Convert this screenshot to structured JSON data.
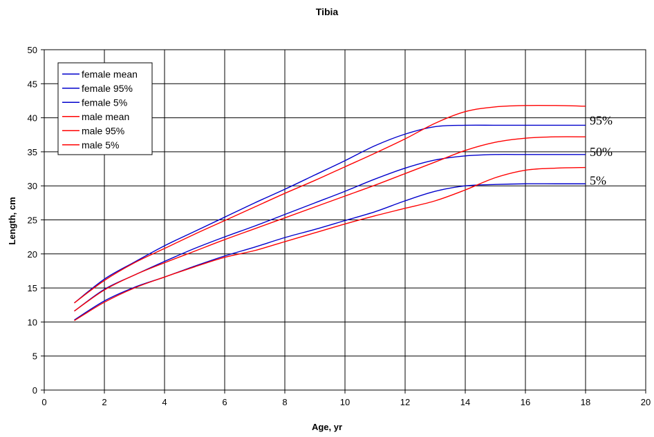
{
  "chart_data": {
    "type": "line",
    "title": "Tibia",
    "xlabel": "Age, yr",
    "ylabel": "Length, cm",
    "xlim": [
      0,
      20
    ],
    "ylim": [
      0,
      50
    ],
    "xticks": [
      "0",
      "2",
      "4",
      "6",
      "8",
      "10",
      "12",
      "14",
      "16",
      "18",
      "20"
    ],
    "yticks": [
      "0",
      "5",
      "10",
      "15",
      "20",
      "25",
      "30",
      "35",
      "40",
      "45",
      "50"
    ],
    "grid": true,
    "legend_position": "top-left",
    "colors": {
      "female": "#0000cc",
      "male": "#ff0000"
    },
    "annotations": [
      {
        "text": "95%",
        "x": 18,
        "y": 39.8
      },
      {
        "text": "50%",
        "x": 18,
        "y": 35.2
      },
      {
        "text": "5%",
        "x": 18,
        "y": 31
      }
    ],
    "series": [
      {
        "name": "female mean",
        "color": "#0000cc",
        "x": [
          1,
          2,
          3,
          4,
          5,
          6,
          7,
          8,
          9,
          10,
          11,
          12,
          13,
          14,
          15,
          16,
          17,
          18
        ],
        "y": [
          11.6,
          14.8,
          16.9,
          18.9,
          20.8,
          22.5,
          24.1,
          25.8,
          27.5,
          29.2,
          31.0,
          32.6,
          33.8,
          34.4,
          34.6,
          34.6,
          34.6,
          34.6
        ]
      },
      {
        "name": "female 95%",
        "color": "#0000cc",
        "x": [
          1,
          2,
          3,
          4,
          5,
          6,
          7,
          8,
          9,
          10,
          11,
          12,
          13,
          14,
          15,
          16,
          17,
          18
        ],
        "y": [
          12.8,
          16.3,
          18.8,
          21.2,
          23.3,
          25.4,
          27.5,
          29.5,
          31.6,
          33.7,
          35.9,
          37.6,
          38.7,
          38.9,
          38.9,
          38.9,
          38.9,
          38.9
        ]
      },
      {
        "name": "female 5%",
        "color": "#0000cc",
        "x": [
          1,
          2,
          3,
          4,
          5,
          6,
          7,
          8,
          9,
          10,
          11,
          12,
          13,
          14,
          15,
          16,
          17,
          18
        ],
        "y": [
          10.3,
          13.1,
          15.1,
          16.6,
          18.2,
          19.7,
          21.0,
          22.4,
          23.6,
          24.9,
          26.2,
          27.8,
          29.2,
          30.0,
          30.2,
          30.3,
          30.3,
          30.3
        ]
      },
      {
        "name": "male mean",
        "color": "#ff0000",
        "x": [
          1,
          2,
          3,
          4,
          5,
          6,
          7,
          8,
          9,
          10,
          11,
          12,
          13,
          14,
          15,
          16,
          17,
          18
        ],
        "y": [
          11.6,
          14.7,
          16.9,
          18.7,
          20.4,
          22.1,
          23.7,
          25.3,
          26.9,
          28.5,
          30.1,
          31.8,
          33.5,
          35.2,
          36.4,
          37.0,
          37.2,
          37.2
        ]
      },
      {
        "name": "male 95%",
        "color": "#ff0000",
        "x": [
          1,
          2,
          3,
          4,
          5,
          6,
          7,
          8,
          9,
          10,
          11,
          12,
          13,
          14,
          15,
          16,
          17,
          18
        ],
        "y": [
          12.8,
          16.1,
          18.7,
          20.8,
          22.9,
          24.9,
          26.9,
          28.9,
          30.8,
          32.8,
          34.8,
          36.9,
          39.2,
          40.9,
          41.6,
          41.8,
          41.8,
          41.7
        ]
      },
      {
        "name": "male 5%",
        "color": "#ff0000",
        "x": [
          1,
          2,
          3,
          4,
          5,
          6,
          7,
          8,
          9,
          10,
          11,
          12,
          13,
          14,
          15,
          16,
          17,
          18
        ],
        "y": [
          10.2,
          12.9,
          15.0,
          16.6,
          18.1,
          19.5,
          20.5,
          21.8,
          23.1,
          24.4,
          25.6,
          26.7,
          27.8,
          29.4,
          31.2,
          32.3,
          32.6,
          32.7
        ]
      }
    ]
  }
}
